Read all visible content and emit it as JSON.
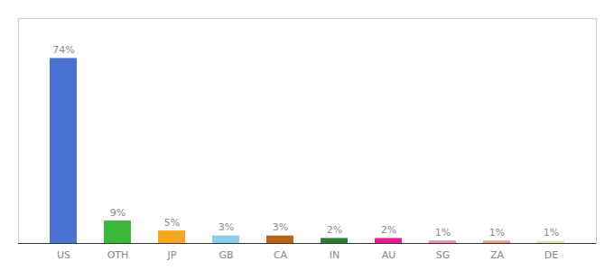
{
  "chart_data": {
    "type": "bar",
    "categories": [
      "US",
      "OTH",
      "JP",
      "GB",
      "CA",
      "IN",
      "AU",
      "SG",
      "ZA",
      "DE"
    ],
    "values": [
      74,
      9,
      5,
      3,
      3,
      2,
      2,
      1,
      1,
      1
    ],
    "value_labels": [
      "74%",
      "9%",
      "5%",
      "3%",
      "3%",
      "2%",
      "2%",
      "1%",
      "1%",
      "1%"
    ],
    "colors": [
      "#4a72d1",
      "#3db83d",
      "#f5a623",
      "#87ceeb",
      "#b8621a",
      "#2e7d32",
      "#e91e8c",
      "#f48fb1",
      "#e8a090",
      "#e8e8c0"
    ],
    "ylim": [
      0,
      90
    ],
    "data_labels": true,
    "tick_labels": "x"
  }
}
